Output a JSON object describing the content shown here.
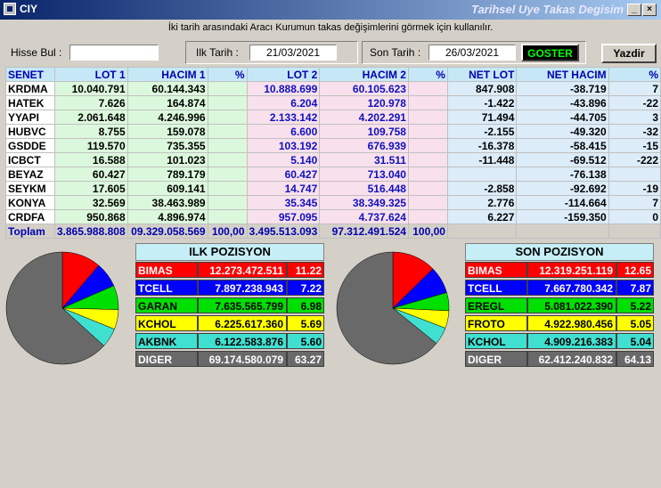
{
  "window": {
    "title": "CIY",
    "caption": "Tarihsel Uye Takas Degisim"
  },
  "info": "İki tarih arasındaki  Aracı Kurumun takas değişimlerini görmek için kullanılır.",
  "controls": {
    "hisse_label": "Hisse Bul :",
    "hisse_value": "",
    "ilk_label": "Ilk Tarih :",
    "ilk_value": "21/03/2021",
    "son_label": "Son Tarih :",
    "son_value": "26/03/2021",
    "goster": "GOSTER",
    "yazdir": "Yazdir"
  },
  "table": {
    "headers": [
      "SENET",
      "LOT 1",
      "HACIM 1",
      "%",
      "LOT 2",
      "HACIM 2",
      "%",
      "NET LOT",
      "NET HACIM",
      "%"
    ],
    "rows": [
      [
        "KRDMA",
        "10.040.791",
        "60.144.343",
        "",
        "10.888.699",
        "60.105.623",
        "",
        "847.908",
        "-38.719",
        "7"
      ],
      [
        "HATEK",
        "7.626",
        "164.874",
        "",
        "6.204",
        "120.978",
        "",
        "-1.422",
        "-43.896",
        "-22"
      ],
      [
        "YYAPI",
        "2.061.648",
        "4.246.996",
        "",
        "2.133.142",
        "4.202.291",
        "",
        "71.494",
        "-44.705",
        "3"
      ],
      [
        "HUBVC",
        "8.755",
        "159.078",
        "",
        "6.600",
        "109.758",
        "",
        "-2.155",
        "-49.320",
        "-32"
      ],
      [
        "GSDDE",
        "119.570",
        "735.355",
        "",
        "103.192",
        "676.939",
        "",
        "-16.378",
        "-58.415",
        "-15"
      ],
      [
        "ICBCT",
        "16.588",
        "101.023",
        "",
        "5.140",
        "31.511",
        "",
        "-11.448",
        "-69.512",
        "-222"
      ],
      [
        "BEYAZ",
        "60.427",
        "789.179",
        "",
        "60.427",
        "713.040",
        "",
        "",
        "-76.138",
        ""
      ],
      [
        "SEYKM",
        "17.605",
        "609.141",
        "",
        "14.747",
        "516.448",
        "",
        "-2.858",
        "-92.692",
        "-19"
      ],
      [
        "KONYA",
        "32.569",
        "38.463.989",
        "",
        "35.345",
        "38.349.325",
        "",
        "2.776",
        "-114.664",
        "7"
      ],
      [
        "CRDFA",
        "950.868",
        "4.896.974",
        "",
        "957.095",
        "4.737.624",
        "",
        "6.227",
        "-159.350",
        "0"
      ]
    ],
    "total": [
      "Toplam",
      "3.865.988.808",
      "09.329.058.569",
      "100,00",
      "3.495.513.093",
      "97.312.491.524",
      "100,00",
      "",
      "",
      ""
    ]
  },
  "ilk_pozisyon": {
    "title": "ILK POZISYON",
    "rows": [
      {
        "name": "BIMAS",
        "value": "12.273.472.511",
        "pct": "11.22",
        "bg": "#ff0000",
        "fg": "#ffffff"
      },
      {
        "name": "TCELL",
        "value": "7.897.238.943",
        "pct": "7.22",
        "bg": "#0000ff",
        "fg": "#ffffff"
      },
      {
        "name": "GARAN",
        "value": "7.635.565.799",
        "pct": "6.98",
        "bg": "#00e000",
        "fg": "#000000"
      },
      {
        "name": "KCHOL",
        "value": "6.225.617.360",
        "pct": "5.69",
        "bg": "#ffff00",
        "fg": "#000000"
      },
      {
        "name": "AKBNK",
        "value": "6.122.583.876",
        "pct": "5.60",
        "bg": "#40e0d0",
        "fg": "#000000"
      },
      {
        "name": "DIGER",
        "value": "69.174.580.079",
        "pct": "63.27",
        "bg": "#696969",
        "fg": "#ffffff"
      }
    ]
  },
  "son_pozisyon": {
    "title": "SON POZISYON",
    "rows": [
      {
        "name": "BIMAS",
        "value": "12.319.251.119",
        "pct": "12.65",
        "bg": "#ff0000",
        "fg": "#ffffff"
      },
      {
        "name": "TCELL",
        "value": "7.667.780.342",
        "pct": "7.87",
        "bg": "#0000ff",
        "fg": "#ffffff"
      },
      {
        "name": "EREGL",
        "value": "5.081.022.390",
        "pct": "5.22",
        "bg": "#00e000",
        "fg": "#000000"
      },
      {
        "name": "FROTO",
        "value": "4.922.980.456",
        "pct": "5.05",
        "bg": "#ffff00",
        "fg": "#000000"
      },
      {
        "name": "KCHOL",
        "value": "4.909.216.383",
        "pct": "5.04",
        "bg": "#40e0d0",
        "fg": "#000000"
      },
      {
        "name": "DIGER",
        "value": "62.412.240.832",
        "pct": "64.13",
        "bg": "#696969",
        "fg": "#ffffff"
      }
    ]
  }
}
